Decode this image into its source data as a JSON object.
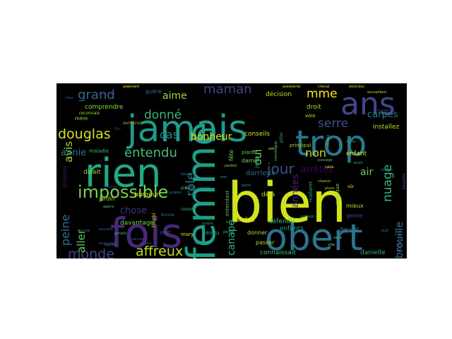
{
  "wordcloud": {
    "background": "#000000",
    "colormap": [
      "#fde725",
      "#b5de2b",
      "#35b779",
      "#21918c",
      "#31688e",
      "#443983",
      "#440154"
    ],
    "words": [
      {
        "text": "bien",
        "color": "#d2e21b",
        "weight": 100
      },
      {
        "text": "jamais",
        "color": "#1f9a8a",
        "weight": 80
      },
      {
        "text": "fois",
        "color": "#482878",
        "weight": 78
      },
      {
        "text": "rien",
        "color": "#22a884",
        "weight": 76
      },
      {
        "text": "obert",
        "color": "#2c728e",
        "weight": 72
      },
      {
        "text": "femme",
        "color": "#1f9e89",
        "weight": 70
      },
      {
        "text": "trop",
        "color": "#2a788e",
        "weight": 68
      },
      {
        "text": "ans",
        "color": "#404688",
        "weight": 64
      },
      {
        "text": "impossible",
        "color": "#7ad151",
        "weight": 40
      },
      {
        "text": "grand",
        "color": "#31688e",
        "weight": 36
      },
      {
        "text": "douglas",
        "color": "#d8e219",
        "weight": 34
      },
      {
        "text": "entendu",
        "color": "#43bf71",
        "weight": 32
      },
      {
        "text": "jour",
        "color": "#3b528b",
        "weight": 30
      },
      {
        "text": "monde",
        "color": "#3e4989",
        "weight": 30
      },
      {
        "text": "affreux",
        "color": "#c2df23",
        "weight": 30
      },
      {
        "text": "maman",
        "color": "#414487",
        "weight": 28
      },
      {
        "text": "donné",
        "color": "#35b779",
        "weight": 28
      },
      {
        "text": "mme",
        "color": "#fde725",
        "weight": 26
      },
      {
        "text": "serre",
        "color": "#3b528b",
        "weight": 26
      },
      {
        "text": "nuage",
        "color": "#35b779",
        "weight": 26
      },
      {
        "text": "rôle",
        "color": "#2c728e",
        "weight": 26
      },
      {
        "text": "non",
        "color": "#bddf26",
        "weight": 26
      },
      {
        "text": "cas",
        "color": "#26828e",
        "weight": 24
      },
      {
        "text": "aime",
        "color": "#9fda3a",
        "weight": 22
      },
      {
        "text": "bonheur",
        "color": "#e5e419",
        "weight": 22
      },
      {
        "text": "peine",
        "color": "#2c728e",
        "weight": 22
      },
      {
        "text": "aller",
        "color": "#5ec962",
        "weight": 22
      },
      {
        "text": "avis",
        "color": "#a5db36",
        "weight": 22
      },
      {
        "text": "oui",
        "color": "#70cf57",
        "weight": 22
      },
      {
        "text": "air",
        "color": "#6ccd5a",
        "weight": 22
      },
      {
        "text": "arrêtez",
        "color": "#440154",
        "weight": 20
      },
      {
        "text": "brouille",
        "color": "#2a788e",
        "weight": 20
      },
      {
        "text": "carpes",
        "color": "#287c8e",
        "weight": 16
      },
      {
        "text": "canapé",
        "color": "#31b57b",
        "weight": 18
      },
      {
        "text": "annie",
        "color": "#2a788e",
        "weight": 18
      },
      {
        "text": "chose",
        "color": "#46337f",
        "weight": 18
      },
      {
        "text": "années",
        "color": "#482475",
        "weight": 18
      },
      {
        "text": "darrieux",
        "color": "#2d708e",
        "weight": 14
      },
      {
        "text": "décision",
        "color": "#bddf26",
        "weight": 12
      },
      {
        "text": "comprendre",
        "color": "#8fd744",
        "weight": 12
      },
      {
        "text": "conseils",
        "color": "#d2e21b",
        "weight": 12
      },
      {
        "text": "installez",
        "color": "#b8de29",
        "weight": 12
      },
      {
        "text": "droit",
        "color": "#a8db34",
        "weight": 12
      },
      {
        "text": "fête",
        "color": "#7fd34e",
        "weight": 11
      },
      {
        "text": "dame",
        "color": "#7ad151",
        "weight": 11
      },
      {
        "text": "jean",
        "color": "#20928c",
        "weight": 11
      },
      {
        "text": "enfant",
        "color": "#e2e418",
        "weight": 12
      },
      {
        "text": "genre",
        "color": "#3e4a89",
        "weight": 11
      },
      {
        "text": "mieux",
        "color": "#b5de2b",
        "weight": 11
      },
      {
        "text": "déjà",
        "color": "#bddf26",
        "weight": 12
      },
      {
        "text": "disait",
        "color": "#a8db34",
        "weight": 12
      },
      {
        "text": "humeur",
        "color": "#d8e219",
        "weight": 12
      },
      {
        "text": "jardin",
        "color": "#9bd93c",
        "weight": 11
      },
      {
        "text": "davantage",
        "color": "#75d054",
        "weight": 12
      },
      {
        "text": "indes",
        "color": "#eae51a",
        "weight": 12
      },
      {
        "text": "défendu",
        "color": "#46c06f",
        "weight": 12
      },
      {
        "text": "enfants",
        "color": "#1e9c89",
        "weight": 12
      },
      {
        "text": "devait",
        "color": "#2c728e",
        "weight": 12
      },
      {
        "text": "neveu",
        "color": "#1fa088",
        "weight": 11
      },
      {
        "text": "donner",
        "color": "#b2dd2d",
        "weight": 11
      },
      {
        "text": "passer",
        "color": "#addc30",
        "weight": 11
      },
      {
        "text": "connaissait",
        "color": "#44bf70",
        "weight": 12
      },
      {
        "text": "danielle",
        "color": "#31b57b",
        "weight": 12
      },
      {
        "text": "hommes",
        "color": "#3e4989",
        "weight": 11
      },
      {
        "text": "musique",
        "color": "#84d44b",
        "weight": 10
      },
      {
        "text": "mallaret",
        "color": "#28ae80",
        "weight": 10
      },
      {
        "text": "goujons",
        "color": "#481a6c",
        "weight": 10
      },
      {
        "text": "mot",
        "color": "#3b528b",
        "weight": 11
      },
      {
        "text": "mary",
        "color": "#e5e419",
        "weight": 10
      },
      {
        "text": "entendant",
        "color": "#5cc863",
        "weight": 10
      },
      {
        "text": "guère",
        "color": "#2d708e",
        "weight": 10
      },
      {
        "text": "fourbi",
        "color": "#d2e21b",
        "weight": 10
      },
      {
        "text": "maladie",
        "color": "#3aba76",
        "weight": 9
      },
      {
        "text": "semaine",
        "color": "#ada72b",
        "weight": 8
      },
      {
        "text": "reconnais",
        "color": "#a0da39",
        "weight": 8
      },
      {
        "text": "mère",
        "color": "#9fda3a",
        "weight": 8
      },
      {
        "text": "plante",
        "color": "#6ccd5a",
        "weight": 8
      },
      {
        "text": "raison",
        "color": "#3dbc74",
        "weight": 8
      },
      {
        "text": "pierrot",
        "color": "#3fbc73",
        "weight": 8
      },
      {
        "text": "voix",
        "color": "#d2e21b",
        "weight": 8
      },
      {
        "text": "principal",
        "color": "#a8db34",
        "weight": 8
      },
      {
        "text": "sûr",
        "color": "#cde11d",
        "weight": 8
      },
      {
        "text": "jouons",
        "color": "#3b528b",
        "weight": 8
      },
      {
        "text": "bonne",
        "color": "#2c728e",
        "weight": 8
      },
      {
        "text": "tour",
        "color": "#25848e",
        "weight": 8
      },
      {
        "text": "bande",
        "color": "#21918c",
        "weight": 8
      },
      {
        "text": "pilier",
        "color": "#22a884",
        "weight": 8
      },
      {
        "text": "appris",
        "color": "#56c667",
        "weight": 8
      },
      {
        "text": "acheté",
        "color": "#4ac16d",
        "weight": 8
      },
      {
        "text": "aisément",
        "color": "#fde725",
        "weight": 7
      },
      {
        "text": "assistante",
        "color": "#dde318",
        "weight": 7
      },
      {
        "text": "cheval",
        "color": "#d0e11c",
        "weight": 7
      },
      {
        "text": "attendez",
        "color": "#c0df25",
        "weight": 7
      },
      {
        "text": "accueillant",
        "color": "#b5de2b",
        "weight": 7
      },
      {
        "text": "pardon",
        "color": "#95d840",
        "weight": 7
      },
      {
        "text": "monologue",
        "color": "#6ece58",
        "weight": 7
      },
      {
        "text": "passage",
        "color": "#52c569",
        "weight": 7
      },
      {
        "text": "parfois",
        "color": "#3dbc74",
        "weight": 7
      },
      {
        "text": "oncle",
        "color": "#29af7f",
        "weight": 7
      },
      {
        "text": "sentir",
        "color": "#22a785",
        "weight": 7
      },
      {
        "text": "lettre",
        "color": "#1f9f88",
        "weight": 7
      },
      {
        "text": "cuisine",
        "color": "#1e9b8a",
        "weight": 7
      },
      {
        "text": "vivre",
        "color": "#20928c",
        "weight": 7
      },
      {
        "text": "propos",
        "color": "#23898e",
        "weight": 7
      },
      {
        "text": "heure",
        "color": "#26818e",
        "weight": 7
      },
      {
        "text": "minute",
        "color": "#2a788e",
        "weight": 7
      },
      {
        "text": "souvent",
        "color": "#2e6f8e",
        "weight": 7
      },
      {
        "text": "pauvre",
        "color": "#33638d",
        "weight": 7
      },
      {
        "text": "argent",
        "color": "#38598c",
        "weight": 7
      },
      {
        "text": "beaucoup",
        "color": "#3e4c8a",
        "weight": 7
      },
      {
        "text": "autres",
        "color": "#424086",
        "weight": 7
      },
      {
        "text": "fille",
        "color": "#463480",
        "weight": 7
      },
      {
        "text": "papa",
        "color": "#482677",
        "weight": 7
      },
      {
        "text": "coup",
        "color": "#481b6d",
        "weight": 7
      },
      {
        "text": "place",
        "color": "#9bd93c",
        "weight": 7
      },
      {
        "text": "chance",
        "color": "#addc30",
        "weight": 7
      },
      {
        "text": "table",
        "color": "#c8e020",
        "weight": 7
      },
      {
        "text": "soir",
        "color": "#e2e418",
        "weight": 7
      },
      {
        "text": "ville",
        "color": "#7ad151",
        "weight": 7
      },
      {
        "text": "veux",
        "color": "#5ec962",
        "weight": 7
      },
      {
        "text": "poisson",
        "color": "#37b878",
        "weight": 7
      },
      {
        "text": "pêche",
        "color": "#2ab07f",
        "weight": 7
      },
      {
        "text": "rivière",
        "color": "#24aa83",
        "weight": 7
      },
      {
        "text": "eau",
        "color": "#1fa187",
        "weight": 7
      },
      {
        "text": "nuit",
        "color": "#1f958b",
        "weight": 7
      },
      {
        "text": "temps",
        "color": "#25838e",
        "weight": 7
      },
      {
        "text": "matin",
        "color": "#2d718e",
        "weight": 7
      },
      {
        "text": "chez",
        "color": "#355f8d",
        "weight": 7
      },
      {
        "text": "moment",
        "color": "#3d4d8a",
        "weight": 7
      }
    ]
  }
}
